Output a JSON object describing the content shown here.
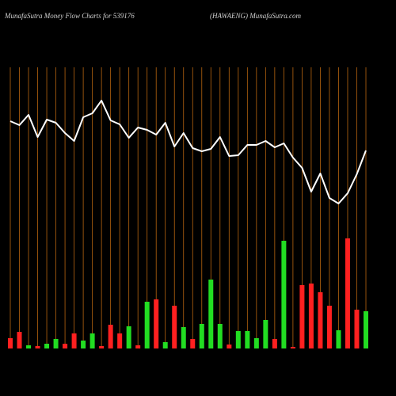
{
  "chart_data": {
    "type": "money-flow",
    "title": "MunafaSutra  Money Flow  Charts for 539176",
    "subtitle": "(HAWAENG) MunafaSutra.com",
    "categories": [
      null,
      null,
      null,
      null,
      null,
      null,
      null,
      null,
      null,
      null,
      null,
      null,
      null,
      null,
      null,
      null,
      null,
      null,
      null,
      null,
      null,
      null,
      null,
      null,
      null,
      null,
      null,
      null,
      null,
      null,
      null,
      null,
      null,
      null,
      null,
      null,
      null,
      null,
      null,
      null
    ],
    "ylim": [
      0,
      440
    ],
    "grid_color": "#b8650f",
    "series": [
      {
        "type": "line",
        "color": "#ffffff",
        "values": [
          287,
          282,
          295,
          267,
          289,
          285,
          272,
          262,
          292,
          297,
          313,
          288,
          283,
          266,
          279,
          276,
          270,
          285,
          255,
          272,
          253,
          249,
          252,
          267,
          243,
          244,
          257,
          257,
          262,
          254,
          259,
          241,
          228,
          198,
          221,
          190,
          183,
          196,
          220,
          250
        ]
      },
      {
        "type": "bar",
        "colors": [
          "#ff2020",
          "#ff2020",
          "#22dd22",
          "#ff2020",
          "#22dd22",
          "#22dd22",
          "#ff2020",
          "#ff2020",
          "#22dd22",
          "#22dd22",
          "#ff2020",
          "#ff2020",
          "#ff2020",
          "#22dd22",
          "#ff2020",
          "#22dd22",
          "#ff2020",
          "#22dd22",
          "#ff2020",
          "#22dd22",
          "#ff2020",
          "#22dd22",
          "#22dd22",
          "#22dd22",
          "#ff2020",
          "#22dd22",
          "#22dd22",
          "#22dd22",
          "#22dd22",
          "#ff2020",
          "#22dd22",
          "#ff2020",
          "#ff2020",
          "#ff2020",
          "#ff2020",
          "#ff2020",
          "#22dd22",
          "#ff2020",
          "#ff2020",
          "#22dd22"
        ],
        "values": [
          13,
          21,
          4,
          3,
          6,
          12,
          6,
          19,
          10,
          19,
          3,
          30,
          19,
          28,
          4,
          59,
          62,
          8,
          54,
          27,
          12,
          31,
          87,
          31,
          5,
          22,
          22,
          13,
          36,
          12,
          136,
          2,
          80,
          82,
          71,
          54,
          23,
          139,
          49,
          47
        ]
      }
    ]
  }
}
